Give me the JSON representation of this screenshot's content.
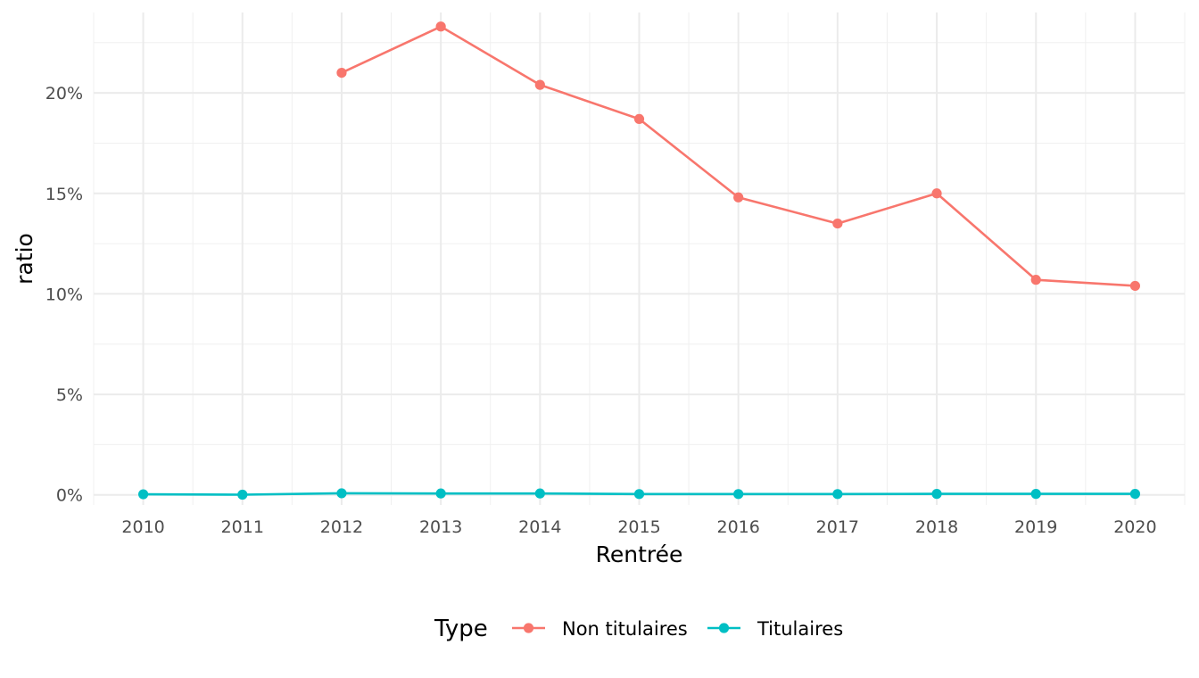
{
  "chart_data": {
    "type": "line",
    "xlabel": "Rentrée",
    "ylabel": "ratio",
    "x": [
      2010,
      2011,
      2012,
      2013,
      2014,
      2015,
      2016,
      2017,
      2018,
      2019,
      2020
    ],
    "xlim": [
      2009.5,
      2020.5
    ],
    "ylim": [
      -0.005,
      0.24
    ],
    "y_ticks": [
      0,
      0.05,
      0.1,
      0.15,
      0.2
    ],
    "y_tick_labels": [
      "0%",
      "5%",
      "10%",
      "15%",
      "20%"
    ],
    "x_tick_labels": [
      "2010",
      "2011",
      "2012",
      "2013",
      "2014",
      "2015",
      "2016",
      "2017",
      "2018",
      "2019",
      "2020"
    ],
    "grid": true,
    "legend": {
      "title": "Type",
      "position": "bottom"
    },
    "series": [
      {
        "name": "Non titulaires",
        "color": "#F8766D",
        "values": [
          null,
          null,
          0.21,
          0.233,
          0.204,
          0.187,
          0.148,
          0.135,
          0.15,
          0.107,
          0.104
        ]
      },
      {
        "name": "Titulaires",
        "color": "#00BFC4",
        "values": [
          0.0003,
          0.0001,
          0.0008,
          0.0007,
          0.0007,
          0.0004,
          0.0004,
          0.0004,
          0.0005,
          0.0005,
          0.0005
        ]
      }
    ]
  }
}
